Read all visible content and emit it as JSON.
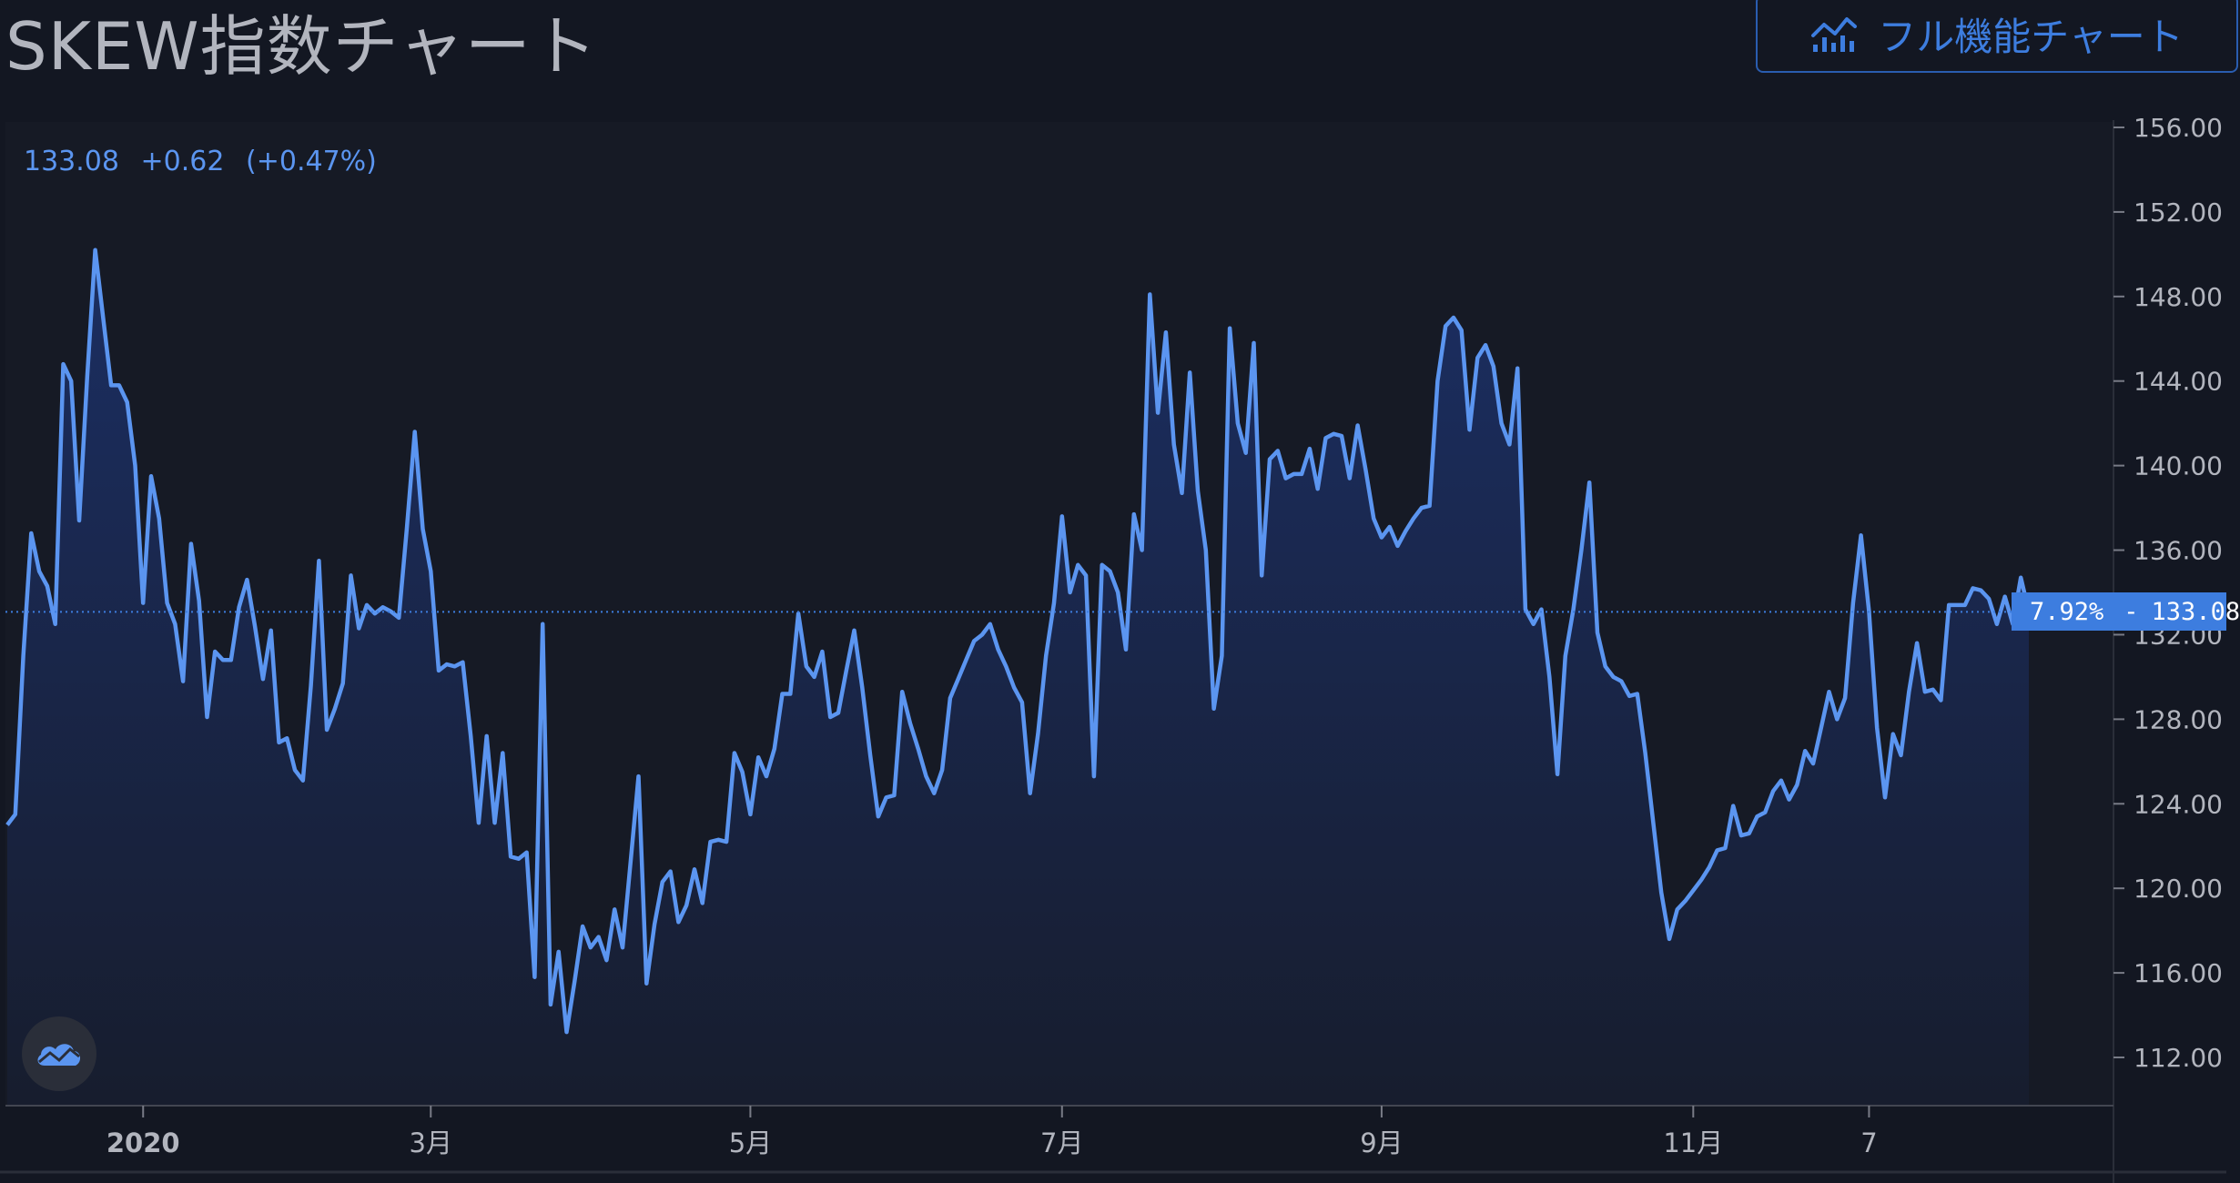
{
  "page": {
    "title": "SKEW指数チャート",
    "full_chart_button": "フル機能チャート"
  },
  "legend": {
    "last": "133.08",
    "change": "+0.62",
    "change_pct": "(+0.47%)"
  },
  "price_tag": {
    "percent": "7.92%",
    "value": "133.08"
  },
  "colors": {
    "background": "#131722",
    "line": "#5b95f0",
    "accent": "#3d7ddf"
  },
  "chart_data": {
    "type": "area",
    "title": "SKEW指数チャート",
    "xlabel": "",
    "ylabel": "",
    "ylim": [
      109.5,
      156.5
    ],
    "yticks": [
      "112.00",
      "116.00",
      "120.00",
      "124.00",
      "128.00",
      "132.00",
      "136.00",
      "140.00",
      "144.00",
      "148.00",
      "152.00",
      "156.00"
    ],
    "xticks": [
      {
        "label": "2020",
        "index": 17
      },
      {
        "label": "3月",
        "index": 53
      },
      {
        "label": "5月",
        "index": 93
      },
      {
        "label": "7月",
        "index": 132
      },
      {
        "label": "9月",
        "index": 172
      },
      {
        "label": "11月",
        "index": 211
      },
      {
        "label": "7",
        "index": 233
      }
    ],
    "last_value": 133.08,
    "values": [
      123.0,
      123.5,
      131.0,
      136.8,
      135.0,
      134.3,
      132.5,
      144.8,
      144.0,
      137.4,
      144.2,
      150.2,
      147.0,
      143.8,
      143.8,
      143.0,
      140.0,
      133.5,
      139.5,
      137.5,
      133.5,
      132.5,
      129.8,
      136.3,
      133.6,
      128.1,
      131.2,
      130.8,
      130.8,
      133.3,
      134.6,
      132.4,
      129.9,
      132.2,
      126.9,
      127.1,
      125.6,
      125.1,
      129.6,
      135.5,
      127.5,
      128.5,
      129.7,
      134.8,
      132.3,
      133.4,
      133.0,
      133.3,
      133.1,
      132.8,
      137.0,
      141.6,
      137.0,
      135.0,
      130.3,
      130.6,
      130.5,
      130.7,
      127.2,
      123.1,
      127.2,
      123.1,
      126.4,
      121.5,
      121.4,
      121.7,
      115.8,
      132.5,
      114.5,
      117.0,
      113.2,
      115.6,
      118.2,
      117.2,
      117.7,
      116.6,
      119.0,
      117.2,
      121.2,
      125.3,
      115.5,
      118.3,
      120.3,
      120.8,
      118.4,
      119.2,
      120.9,
      119.3,
      122.2,
      122.3,
      122.2,
      126.4,
      125.5,
      123.5,
      126.2,
      125.3,
      126.6,
      129.2,
      129.2,
      133.0,
      130.5,
      130.0,
      131.2,
      128.1,
      128.3,
      130.3,
      132.2,
      129.5,
      126.3,
      123.4,
      124.3,
      124.4,
      129.3,
      127.8,
      126.6,
      125.3,
      124.5,
      125.6,
      129.0,
      129.9,
      130.8,
      131.7,
      132.0,
      132.5,
      131.3,
      130.5,
      129.5,
      128.8,
      124.5,
      127.3,
      131.0,
      133.5,
      137.6,
      134.0,
      135.3,
      134.8,
      125.3,
      135.3,
      135.0,
      134.0,
      131.3,
      137.7,
      136.0,
      148.1,
      142.5,
      146.3,
      141.0,
      138.7,
      144.4,
      138.8,
      136.0,
      128.5,
      131.0,
      146.5,
      142.0,
      140.6,
      145.8,
      134.8,
      140.3,
      140.7,
      139.4,
      139.6,
      139.6,
      140.8,
      138.9,
      141.3,
      141.5,
      141.4,
      139.4,
      141.9,
      139.8,
      137.5,
      136.6,
      137.1,
      136.2,
      136.9,
      137.5,
      138.0,
      138.1,
      144.0,
      146.6,
      147.0,
      146.4,
      141.7,
      145.1,
      145.7,
      144.7,
      142.0,
      141.0,
      144.6,
      133.2,
      132.5,
      133.2,
      130.0,
      125.4,
      131.0,
      133.2,
      136.0,
      139.2,
      132.1,
      130.5,
      130.0,
      129.8,
      129.1,
      129.2,
      126.4,
      123.1,
      119.8,
      117.6,
      119.0,
      119.4,
      119.9,
      120.4,
      121.0,
      121.8,
      121.9,
      123.9,
      122.5,
      122.6,
      123.4,
      123.6,
      124.6,
      125.1,
      124.2,
      124.9,
      126.5,
      125.9,
      127.6,
      129.3,
      128.0,
      129.0,
      133.5,
      136.7,
      133.1,
      127.6,
      124.3,
      127.3,
      126.3,
      129.3,
      131.6,
      129.3,
      129.4,
      128.9,
      133.4,
      133.4,
      133.4,
      134.2,
      134.1,
      133.7,
      132.5,
      133.8,
      132.5,
      134.7,
      133.08
    ]
  }
}
